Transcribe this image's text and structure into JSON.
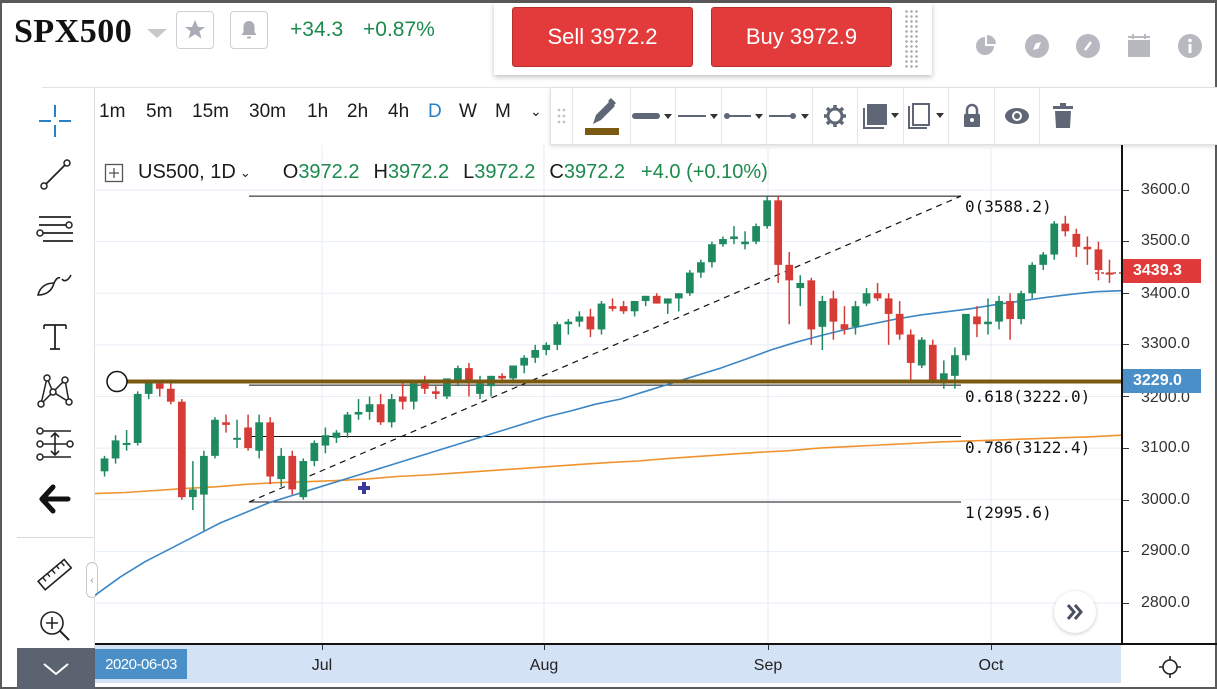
{
  "header": {
    "symbol": "SPX500",
    "change_abs": "+34.3",
    "change_pct": "+0.87%",
    "favorite_icon": "star-icon",
    "alert_icon": "bell-icon"
  },
  "trade": {
    "sell_label": "Sell 3972.2",
    "buy_label": "Buy 3972.9"
  },
  "top_icons": [
    "pie-chart-icon",
    "compass-icon",
    "gauge-icon",
    "calendar-icon",
    "info-icon"
  ],
  "timeframes": [
    {
      "label": "1m",
      "active": false
    },
    {
      "label": "5m",
      "active": false
    },
    {
      "label": "15m",
      "active": false
    },
    {
      "label": "30m",
      "active": false
    },
    {
      "label": "1h",
      "active": false
    },
    {
      "label": "2h",
      "active": false
    },
    {
      "label": "4h",
      "active": false
    },
    {
      "label": "D",
      "active": true
    },
    {
      "label": "W",
      "active": false
    },
    {
      "label": "M",
      "active": false
    }
  ],
  "drawing_toolbar": {
    "items": [
      "pencil-color-icon",
      "line-width-icon",
      "line-style-icon",
      "line-start-icon",
      "line-end-icon",
      "settings-icon",
      "fill-icon",
      "clone-icon",
      "lock-icon",
      "visibility-icon",
      "trash-icon"
    ],
    "accent_color": "#7a5a12"
  },
  "left_tools": [
    "crosshair-icon",
    "trend-line-icon",
    "parallel-lines-icon",
    "brush-icon",
    "text-icon",
    "pattern-icon",
    "fib-measure-icon",
    "back-arrow-icon",
    "ruler-icon",
    "zoom-in-icon",
    "chevron-down-icon"
  ],
  "legend": {
    "symbol": "US500, 1D",
    "o_label": "O",
    "o": "3972.2",
    "h_label": "H",
    "h": "3972.2",
    "l_label": "L",
    "l": "3972.2",
    "c_label": "C",
    "c": "3972.2",
    "change": "+4.0 (+0.10%)"
  },
  "price_axis": {
    "labels": [
      "3600.0",
      "3500.0",
      "3400.0",
      "3300.0",
      "3200.0",
      "3100.0",
      "3000.0",
      "2900.0",
      "2800.0"
    ],
    "current_price": "3439.3",
    "current_color": "#e03a3a",
    "crosshair_price": "3229.0",
    "crosshair_color": "#4a8fc7"
  },
  "time_axis": {
    "crosshair_date": "2020-06-03",
    "labels": [
      "Jul",
      "Aug",
      "Sep",
      "Oct"
    ]
  },
  "fibonacci": [
    {
      "label": "0(3588.2)"
    },
    {
      "label": "0.618(3222.0)"
    },
    {
      "label": "0.786(3122.4)"
    },
    {
      "label": "1(2995.6)"
    }
  ],
  "chart_data": {
    "type": "candlestick",
    "title": "US500, 1D",
    "ylim": [
      2740,
      3660
    ],
    "xlabels": [
      "2020-06-03",
      "Jul",
      "Aug",
      "Sep",
      "Oct"
    ],
    "colors": {
      "up": "#1f8a5f",
      "down": "#d63b36",
      "ma_fast": "#3d86c6",
      "ma_slow": "#f0922e",
      "fib_level": "#7a5a12"
    },
    "candles": [
      [
        3055,
        3085,
        3045,
        3080
      ],
      [
        3080,
        3125,
        3070,
        3115
      ],
      [
        3110,
        3135,
        3095,
        3110
      ],
      [
        3110,
        3210,
        3105,
        3205
      ],
      [
        3205,
        3230,
        3195,
        3228
      ],
      [
        3225,
        3230,
        3200,
        3215
      ],
      [
        3215,
        3230,
        3185,
        3190
      ],
      [
        3190,
        3195,
        3000,
        3005
      ],
      [
        3005,
        3075,
        2980,
        3020
      ],
      [
        3010,
        3095,
        2940,
        3085
      ],
      [
        3085,
        3160,
        3080,
        3155
      ],
      [
        3150,
        3165,
        3130,
        3145
      ],
      [
        3120,
        3155,
        3100,
        3120
      ],
      [
        3140,
        3165,
        3095,
        3100
      ],
      [
        3095,
        3165,
        3080,
        3150
      ],
      [
        3150,
        3160,
        3030,
        3045
      ],
      [
        3040,
        3100,
        3025,
        3085
      ],
      [
        3085,
        3095,
        3010,
        3020
      ],
      [
        3005,
        3080,
        3000,
        3075
      ],
      [
        3075,
        3115,
        3065,
        3110
      ],
      [
        3105,
        3140,
        3090,
        3125
      ],
      [
        3120,
        3135,
        3110,
        3130
      ],
      [
        3130,
        3170,
        3120,
        3165
      ],
      [
        3165,
        3195,
        3155,
        3170
      ],
      [
        3170,
        3200,
        3155,
        3185
      ],
      [
        3185,
        3205,
        3145,
        3150
      ],
      [
        3150,
        3205,
        3140,
        3195
      ],
      [
        3200,
        3230,
        3175,
        3190
      ],
      [
        3190,
        3220,
        3175,
        3225
      ],
      [
        3225,
        3240,
        3205,
        3215
      ],
      [
        3210,
        3220,
        3195,
        3205
      ],
      [
        3200,
        3235,
        3195,
        3235
      ],
      [
        3230,
        3260,
        3220,
        3255
      ],
      [
        3255,
        3265,
        3200,
        3230
      ],
      [
        3205,
        3240,
        3195,
        3225
      ],
      [
        3220,
        3240,
        3200,
        3240
      ],
      [
        3240,
        3245,
        3225,
        3235
      ],
      [
        3235,
        3260,
        3225,
        3260
      ],
      [
        3260,
        3280,
        3245,
        3275
      ],
      [
        3275,
        3300,
        3265,
        3290
      ],
      [
        3290,
        3305,
        3280,
        3300
      ],
      [
        3300,
        3345,
        3290,
        3340
      ],
      [
        3340,
        3350,
        3320,
        3345
      ],
      [
        3345,
        3365,
        3335,
        3355
      ],
      [
        3355,
        3370,
        3315,
        3330
      ],
      [
        3330,
        3385,
        3320,
        3380
      ],
      [
        3375,
        3390,
        3365,
        3370
      ],
      [
        3375,
        3385,
        3360,
        3365
      ],
      [
        3365,
        3385,
        3355,
        3385
      ],
      [
        3385,
        3395,
        3375,
        3395
      ],
      [
        3395,
        3400,
        3380,
        3380
      ],
      [
        3380,
        3390,
        3360,
        3390
      ],
      [
        3390,
        3400,
        3365,
        3400
      ],
      [
        3400,
        3445,
        3395,
        3440
      ],
      [
        3440,
        3465,
        3430,
        3460
      ],
      [
        3460,
        3500,
        3450,
        3495
      ],
      [
        3495,
        3510,
        3490,
        3505
      ],
      [
        3505,
        3530,
        3495,
        3510
      ],
      [
        3495,
        3520,
        3485,
        3500
      ],
      [
        3500,
        3535,
        3495,
        3530
      ],
      [
        3530,
        3588,
        3525,
        3580
      ],
      [
        3580,
        3588,
        3420,
        3455
      ],
      [
        3455,
        3480,
        3340,
        3425
      ],
      [
        3410,
        3435,
        3375,
        3420
      ],
      [
        3425,
        3430,
        3300,
        3330
      ],
      [
        3335,
        3395,
        3290,
        3385
      ],
      [
        3390,
        3405,
        3310,
        3345
      ],
      [
        3340,
        3375,
        3320,
        3330
      ],
      [
        3335,
        3385,
        3320,
        3375
      ],
      [
        3380,
        3410,
        3375,
        3400
      ],
      [
        3400,
        3420,
        3385,
        3390
      ],
      [
        3390,
        3400,
        3300,
        3360
      ],
      [
        3360,
        3385,
        3310,
        3320
      ],
      [
        3320,
        3330,
        3225,
        3265
      ],
      [
        3260,
        3315,
        3255,
        3310
      ],
      [
        3300,
        3310,
        3225,
        3230
      ],
      [
        3225,
        3270,
        3215,
        3245
      ],
      [
        3240,
        3295,
        3215,
        3280
      ],
      [
        3280,
        3355,
        3270,
        3360
      ],
      [
        3355,
        3375,
        3315,
        3340
      ],
      [
        3340,
        3390,
        3320,
        3345
      ],
      [
        3345,
        3395,
        3330,
        3385
      ],
      [
        3385,
        3400,
        3310,
        3350
      ],
      [
        3350,
        3405,
        3340,
        3400
      ],
      [
        3400,
        3460,
        3390,
        3455
      ],
      [
        3455,
        3480,
        3445,
        3475
      ],
      [
        3475,
        3540,
        3465,
        3535
      ],
      [
        3535,
        3550,
        3510,
        3520
      ],
      [
        3515,
        3525,
        3470,
        3490
      ],
      [
        3490,
        3510,
        3455,
        3485
      ],
      [
        3485,
        3500,
        3425,
        3445
      ],
      [
        3440,
        3465,
        3420,
        3439
      ]
    ],
    "ma_fast": [
      2815,
      2850,
      2880,
      2905,
      2930,
      2955,
      2975,
      2995,
      3010,
      3025,
      3040,
      3055,
      3070,
      3085,
      3100,
      3115,
      3130,
      3145,
      3160,
      3172,
      3185,
      3195,
      3210,
      3225,
      3240,
      3255,
      3272,
      3290,
      3305,
      3318,
      3330,
      3340,
      3350,
      3358,
      3364,
      3370,
      3378,
      3385,
      3392,
      3398,
      3403,
      3405
    ],
    "ma_slow": [
      3012,
      3014,
      3018,
      3022,
      3025,
      3030,
      3033,
      3035,
      3037,
      3040,
      3045,
      3048,
      3052,
      3056,
      3060,
      3064,
      3068,
      3072,
      3075,
      3080,
      3084,
      3088,
      3092,
      3095,
      3100,
      3103,
      3106,
      3109,
      3112,
      3114,
      3116,
      3118,
      3120,
      3122,
      3125
    ],
    "fib_levels": [
      {
        "ratio": "0",
        "price": 3588.2
      },
      {
        "ratio": "0.618",
        "price": 3222.0
      },
      {
        "ratio": "0.786",
        "price": 3122.4
      },
      {
        "ratio": "1",
        "price": 2995.6
      }
    ],
    "horizontal_line": 3229.0,
    "last_price": 3439.3
  }
}
